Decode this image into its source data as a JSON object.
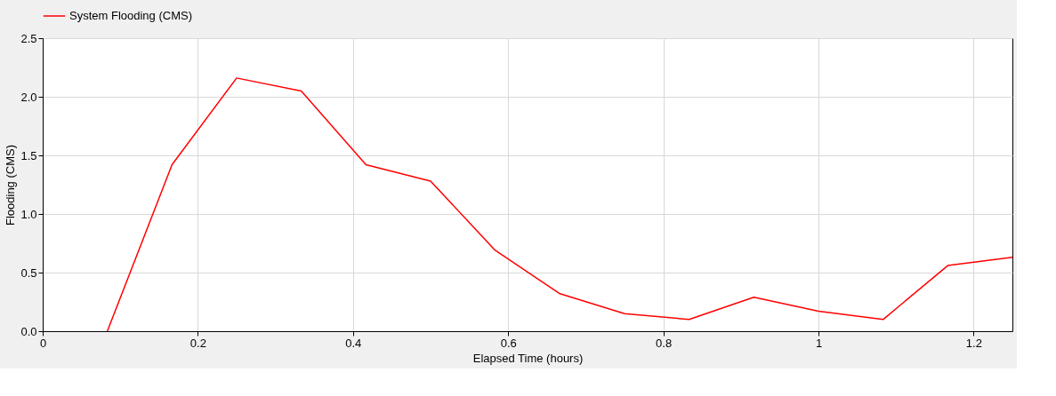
{
  "chart_data": {
    "type": "line",
    "xlabel": "Elapsed Time (hours)",
    "ylabel": "Flooding (CMS)",
    "x": [
      0.0833,
      0.1667,
      0.25,
      0.3333,
      0.4167,
      0.5,
      0.5833,
      0.6667,
      0.75,
      0.8333,
      0.9167,
      1.0,
      1.0833,
      1.1667,
      1.25
    ],
    "series": [
      {
        "name": "System Flooding (CMS)",
        "color": "#ff0000",
        "values": [
          0.0,
          1.42,
          2.16,
          2.05,
          1.42,
          1.28,
          0.69,
          0.32,
          0.15,
          0.1,
          0.29,
          0.17,
          0.1,
          0.56,
          0.63
        ]
      }
    ],
    "xlim": [
      0,
      1.25
    ],
    "xticks": [
      0,
      0.2,
      0.4,
      0.6,
      0.8,
      1,
      1.2
    ],
    "ylim": [
      0,
      2.5
    ],
    "yticks": [
      {
        "value": 0,
        "label": "0.0"
      },
      {
        "value": 0.5,
        "label": "0.5"
      },
      {
        "value": 1,
        "label": "1.0"
      },
      {
        "value": 1.5,
        "label": "1.5"
      },
      {
        "value": 2,
        "label": "2.0"
      },
      {
        "value": 2.5,
        "label": "2.5"
      }
    ],
    "grid": true,
    "legend": "top",
    "marker": "none",
    "line_style": "solid"
  }
}
